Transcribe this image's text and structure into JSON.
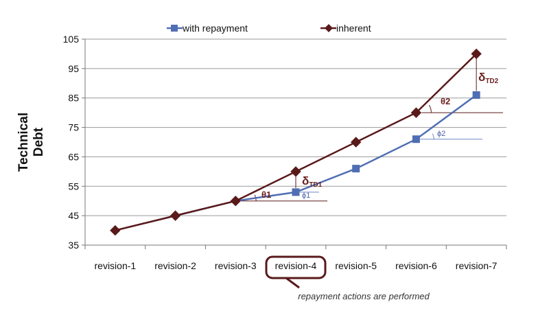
{
  "chart_data": {
    "type": "line",
    "categories": [
      "revision-1",
      "revision-2",
      "revision-3",
      "revision-4",
      "revision-5",
      "revision-6",
      "revision-7"
    ],
    "ylabel_lines": [
      "Technical",
      "Debt"
    ],
    "ylim": [
      35,
      105
    ],
    "yticks": [
      35,
      45,
      55,
      65,
      75,
      85,
      95,
      105
    ],
    "grid": true,
    "legend_position": "top",
    "series": [
      {
        "name": "with repayment",
        "color": "#4f6eb3",
        "marker": "square",
        "values": [
          40,
          45,
          50,
          53,
          61,
          71,
          86
        ]
      },
      {
        "name": "inherent",
        "color": "#5a1a1a",
        "marker": "diamond",
        "values": [
          40,
          45,
          50,
          60,
          70,
          80,
          100
        ]
      }
    ],
    "annotations": {
      "theta1": "θ1",
      "phi1": "ϕ1",
      "delta_td1": {
        "main": "δ",
        "sub": "TD1"
      },
      "theta2": "θ2",
      "phi2": "ϕ2",
      "delta_td2": {
        "main": "δ",
        "sub": "TD2"
      },
      "highlight_note": "repayment actions are performed"
    },
    "highlighted_category_index": 3
  }
}
